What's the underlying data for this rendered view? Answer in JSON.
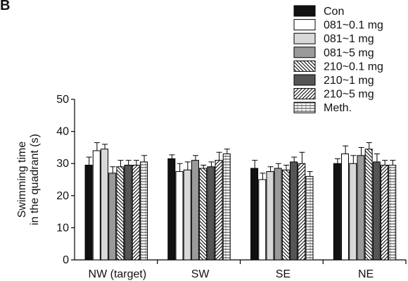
{
  "panel_label": "B",
  "chart_data": {
    "type": "bar",
    "ylabel_lines": [
      "Swimming time",
      "in the quadrant (s)"
    ],
    "ylim": [
      0,
      50
    ],
    "yticks": [
      0,
      10,
      20,
      30,
      40,
      50
    ],
    "categories": [
      "NW (target)",
      "SW",
      "SE",
      "NE"
    ],
    "legend_position": "top-right",
    "series": [
      {
        "name": "Con",
        "fill": "solid-black",
        "values": [
          29.5,
          31.5,
          28.5,
          30.0
        ],
        "errors": [
          2.5,
          1.2,
          2.5,
          1.5
        ]
      },
      {
        "name": "081~0.1 mg",
        "fill": "white",
        "values": [
          34.0,
          27.5,
          25.0,
          33.0
        ],
        "errors": [
          2.5,
          2.5,
          2.0,
          2.5
        ]
      },
      {
        "name": "081~1 mg",
        "fill": "light-gray",
        "values": [
          34.5,
          28.0,
          27.5,
          30.0
        ],
        "errors": [
          1.5,
          2.5,
          1.5,
          2.5
        ]
      },
      {
        "name": "081~5 mg",
        "fill": "mid-gray",
        "values": [
          27.0,
          31.0,
          28.5,
          32.5
        ],
        "errors": [
          2.0,
          1.5,
          1.5,
          2.5
        ]
      },
      {
        "name": "210~0.1 mg",
        "fill": "back-hatch",
        "values": [
          29.0,
          28.5,
          28.0,
          34.5
        ],
        "errors": [
          2.0,
          1.0,
          1.5,
          2.0
        ]
      },
      {
        "name": "210~1 mg",
        "fill": "dark-gray",
        "values": [
          29.5,
          29.0,
          30.5,
          30.5
        ],
        "errors": [
          1.5,
          1.5,
          1.5,
          2.5
        ]
      },
      {
        "name": "210~5 mg",
        "fill": "fwd-hatch",
        "values": [
          29.5,
          31.0,
          30.0,
          29.5
        ],
        "errors": [
          1.5,
          2.5,
          3.5,
          1.5
        ]
      },
      {
        "name": "Meth.",
        "fill": "grid-hatch",
        "values": [
          30.5,
          33.0,
          26.0,
          29.5
        ],
        "errors": [
          2.0,
          1.5,
          1.5,
          1.5
        ]
      }
    ]
  }
}
